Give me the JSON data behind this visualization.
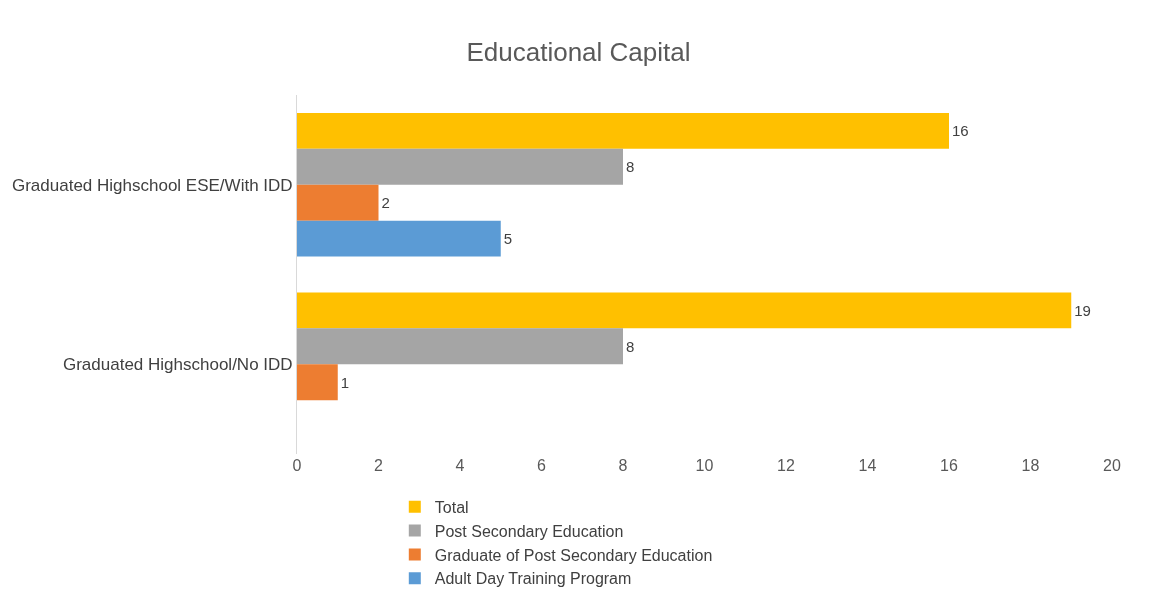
{
  "chart_data": {
    "type": "bar",
    "orientation": "horizontal",
    "title": "Educational Capital",
    "categories": [
      "Graduated Highschool ESE/With IDD",
      "Graduated Highschool/No IDD"
    ],
    "series": [
      {
        "name": "Total",
        "color": "#ffc000",
        "values": [
          16,
          19
        ]
      },
      {
        "name": "Post Secondary Education",
        "color": "#a5a5a5",
        "values": [
          8,
          8
        ]
      },
      {
        "name": "Graduate of Post Secondary Education",
        "color": "#ed7d31",
        "values": [
          2,
          1
        ]
      },
      {
        "name": "Adult Day Training Program",
        "color": "#5b9bd5",
        "values": [
          5,
          null
        ]
      }
    ],
    "xlim": [
      0,
      20
    ],
    "xticks": [
      0,
      2,
      4,
      6,
      8,
      10,
      12,
      14,
      16,
      18,
      20
    ],
    "grid": false,
    "legend": "bottom",
    "data_labels": true
  }
}
